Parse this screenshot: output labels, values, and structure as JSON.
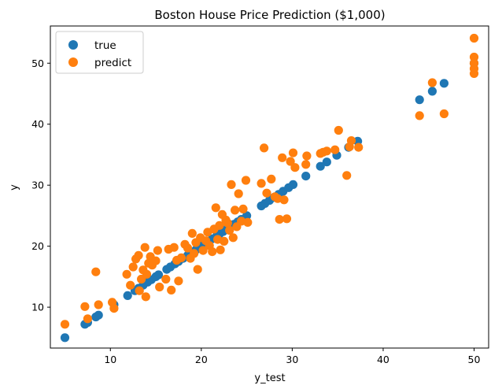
{
  "chart_data": {
    "type": "scatter",
    "title": "Boston House Price Prediction ($1,000)",
    "xlabel": "y_test",
    "ylabel": "y",
    "xlim": [
      3.4,
      51.6
    ],
    "ylim": [
      3.3,
      56.1
    ],
    "xticks": [
      10,
      20,
      30,
      40,
      50
    ],
    "yticks": [
      10,
      20,
      30,
      40,
      50
    ],
    "grid": false,
    "legend": "top-left",
    "series": [
      {
        "name": "true",
        "color": "#1f77b4",
        "points": [
          [
            5.0,
            5.0
          ],
          [
            7.2,
            7.2
          ],
          [
            7.5,
            7.5
          ],
          [
            8.4,
            8.4
          ],
          [
            8.7,
            8.7
          ],
          [
            10.4,
            10.4
          ],
          [
            11.9,
            11.9
          ],
          [
            12.7,
            12.7
          ],
          [
            13.1,
            13.1
          ],
          [
            13.6,
            13.6
          ],
          [
            14.1,
            14.1
          ],
          [
            14.5,
            14.5
          ],
          [
            15.0,
            15.0
          ],
          [
            15.3,
            15.3
          ],
          [
            16.2,
            16.2
          ],
          [
            16.6,
            16.6
          ],
          [
            17.1,
            17.1
          ],
          [
            17.5,
            17.5
          ],
          [
            18.0,
            18.0
          ],
          [
            18.5,
            18.5
          ],
          [
            19.0,
            19.0
          ],
          [
            19.4,
            19.4
          ],
          [
            19.8,
            19.8
          ],
          [
            20.1,
            20.1
          ],
          [
            20.5,
            20.5
          ],
          [
            20.8,
            20.8
          ],
          [
            21.2,
            21.2
          ],
          [
            21.7,
            21.7
          ],
          [
            22.0,
            22.0
          ],
          [
            22.4,
            22.4
          ],
          [
            22.8,
            22.8
          ],
          [
            23.1,
            23.1
          ],
          [
            23.6,
            23.6
          ],
          [
            24.0,
            24.0
          ],
          [
            24.4,
            24.4
          ],
          [
            25.0,
            25.0
          ],
          [
            26.6,
            26.6
          ],
          [
            27.0,
            27.0
          ],
          [
            27.5,
            27.5
          ],
          [
            28.0,
            28.0
          ],
          [
            28.5,
            28.5
          ],
          [
            29.0,
            29.0
          ],
          [
            29.6,
            29.6
          ],
          [
            30.1,
            30.1
          ],
          [
            31.5,
            31.5
          ],
          [
            33.1,
            33.1
          ],
          [
            33.8,
            33.8
          ],
          [
            34.9,
            34.9
          ],
          [
            36.2,
            36.2
          ],
          [
            37.2,
            37.2
          ],
          [
            44.0,
            44.0
          ],
          [
            45.4,
            45.4
          ],
          [
            46.7,
            46.7
          ],
          [
            50.0,
            50.0
          ]
        ]
      },
      {
        "name": "predict",
        "color": "#ff7f0e",
        "points": [
          [
            5.0,
            7.2
          ],
          [
            7.2,
            10.1
          ],
          [
            7.5,
            8.1
          ],
          [
            8.4,
            15.8
          ],
          [
            8.7,
            10.4
          ],
          [
            10.2,
            10.8
          ],
          [
            10.4,
            9.8
          ],
          [
            11.8,
            15.4
          ],
          [
            12.2,
            13.6
          ],
          [
            12.5,
            16.6
          ],
          [
            12.8,
            17.9
          ],
          [
            13.1,
            18.5
          ],
          [
            13.2,
            12.7
          ],
          [
            13.4,
            14.6
          ],
          [
            13.6,
            16.1
          ],
          [
            13.8,
            19.8
          ],
          [
            13.9,
            11.7
          ],
          [
            14.0,
            15.4
          ],
          [
            14.2,
            17.2
          ],
          [
            14.4,
            18.3
          ],
          [
            14.6,
            16.9
          ],
          [
            15.0,
            17.6
          ],
          [
            15.2,
            19.3
          ],
          [
            15.4,
            13.3
          ],
          [
            16.1,
            14.6
          ],
          [
            16.4,
            19.5
          ],
          [
            16.7,
            12.8
          ],
          [
            17.0,
            19.8
          ],
          [
            17.3,
            17.7
          ],
          [
            17.5,
            14.3
          ],
          [
            17.8,
            18.1
          ],
          [
            18.2,
            20.3
          ],
          [
            18.5,
            19.7
          ],
          [
            18.8,
            18.0
          ],
          [
            19.0,
            22.1
          ],
          [
            19.2,
            18.8
          ],
          [
            19.4,
            20.6
          ],
          [
            19.6,
            16.2
          ],
          [
            19.9,
            21.4
          ],
          [
            20.2,
            19.3
          ],
          [
            20.5,
            20.9
          ],
          [
            20.7,
            22.3
          ],
          [
            20.9,
            20.1
          ],
          [
            21.2,
            19.1
          ],
          [
            21.4,
            22.8
          ],
          [
            21.6,
            26.3
          ],
          [
            21.8,
            21.1
          ],
          [
            22.0,
            23.4
          ],
          [
            22.1,
            19.4
          ],
          [
            22.3,
            25.2
          ],
          [
            22.5,
            20.8
          ],
          [
            22.7,
            24.3
          ],
          [
            22.9,
            23.8
          ],
          [
            23.1,
            22.6
          ],
          [
            23.3,
            30.1
          ],
          [
            23.5,
            21.4
          ],
          [
            23.7,
            25.9
          ],
          [
            23.9,
            23.2
          ],
          [
            24.1,
            28.6
          ],
          [
            24.4,
            24.1
          ],
          [
            24.6,
            26.1
          ],
          [
            24.9,
            30.8
          ],
          [
            25.1,
            23.9
          ],
          [
            26.6,
            30.3
          ],
          [
            26.9,
            36.1
          ],
          [
            27.2,
            28.7
          ],
          [
            27.7,
            31.0
          ],
          [
            28.1,
            28.1
          ],
          [
            28.4,
            27.8
          ],
          [
            28.6,
            24.4
          ],
          [
            28.9,
            34.5
          ],
          [
            29.1,
            27.6
          ],
          [
            29.4,
            24.5
          ],
          [
            29.8,
            33.9
          ],
          [
            30.1,
            35.3
          ],
          [
            30.3,
            32.9
          ],
          [
            31.5,
            33.4
          ],
          [
            31.6,
            34.8
          ],
          [
            33.1,
            35.2
          ],
          [
            33.4,
            35.4
          ],
          [
            33.8,
            35.6
          ],
          [
            34.7,
            35.8
          ],
          [
            35.1,
            39.0
          ],
          [
            36.0,
            31.6
          ],
          [
            36.3,
            36.3
          ],
          [
            36.5,
            37.3
          ],
          [
            37.3,
            36.2
          ],
          [
            44.0,
            41.4
          ],
          [
            45.4,
            46.8
          ],
          [
            46.7,
            41.7
          ],
          [
            50.0,
            54.1
          ],
          [
            50.0,
            51.0
          ],
          [
            50.0,
            50.0
          ],
          [
            50.0,
            49.1
          ],
          [
            50.0,
            48.3
          ]
        ]
      }
    ]
  }
}
